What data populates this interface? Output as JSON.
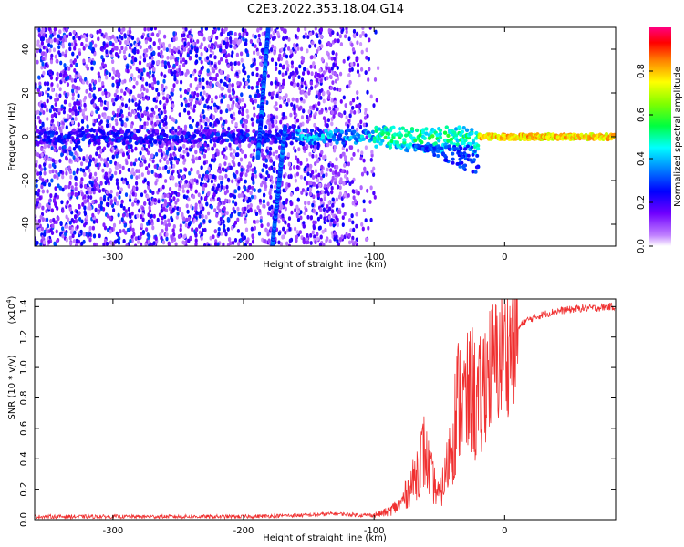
{
  "title": "C2E3.2022.353.18.04.G14",
  "chart_data": [
    {
      "type": "heatmap",
      "xlabel": "Height of straight line (km)",
      "ylabel": "Frequency (Hz)",
      "xlim": [
        -360,
        85
      ],
      "ylim": [
        -50,
        50
      ],
      "xticks": [
        -300,
        -200,
        -100,
        0
      ],
      "yticks": [
        -40,
        -20,
        0,
        20,
        40
      ],
      "colorbar": {
        "label": "Normalized spectral amplitude",
        "range": [
          0,
          1
        ],
        "ticks": [
          0.0,
          0.2,
          0.4,
          0.6,
          0.8
        ],
        "colormap": [
          "#ffffff",
          "#a000ff",
          "#3000ff",
          "#0080ff",
          "#00ffff",
          "#00ff00",
          "#ffff00",
          "#ff8000",
          "#ff0000",
          "#ff0080"
        ]
      },
      "features": {
        "noise_region_x": [
          -360,
          -100
        ],
        "carrier_line_hz": 0,
        "carrier_strength_increasing_from_x": -120,
        "sweep_line_1": {
          "from": [
            -178,
            -50
          ],
          "to": [
            -168,
            5
          ]
        },
        "sweep_line_2": {
          "from": [
            -181,
            50
          ],
          "to": [
            -189,
            -10
          ]
        }
      }
    },
    {
      "type": "line",
      "xlabel": "Height of straight line (km)",
      "ylabel": "SNR (10 * v/v)",
      "yscale_label": "(x10",
      "yscale_exp": "4",
      "xlim": [
        -360,
        85
      ],
      "ylim": [
        0,
        1.45
      ],
      "xticks": [
        -300,
        -200,
        -100,
        0
      ],
      "yticks": [
        0.0,
        0.2,
        0.4,
        0.6,
        0.8,
        1.0,
        1.2,
        1.4
      ],
      "series": [
        {
          "color": "#f03030",
          "x": [
            -360,
            -300,
            -250,
            -200,
            -150,
            -130,
            -110,
            -100,
            -90,
            -80,
            -70,
            -62,
            -55,
            -50,
            -45,
            -40,
            -35,
            -30,
            -25,
            -20,
            -15,
            -10,
            -5,
            0,
            5,
            10,
            15,
            20,
            30,
            40,
            50,
            60,
            70,
            80,
            85
          ],
          "y": [
            0.02,
            0.02,
            0.02,
            0.02,
            0.03,
            0.04,
            0.03,
            0.03,
            0.05,
            0.1,
            0.25,
            0.45,
            0.25,
            0.15,
            0.3,
            0.55,
            0.8,
            0.75,
            0.85,
            0.7,
            0.95,
            1.0,
            1.05,
            1.1,
            1.15,
            1.25,
            1.3,
            1.32,
            1.35,
            1.37,
            1.38,
            1.39,
            1.39,
            1.4,
            1.4
          ]
        }
      ]
    }
  ]
}
